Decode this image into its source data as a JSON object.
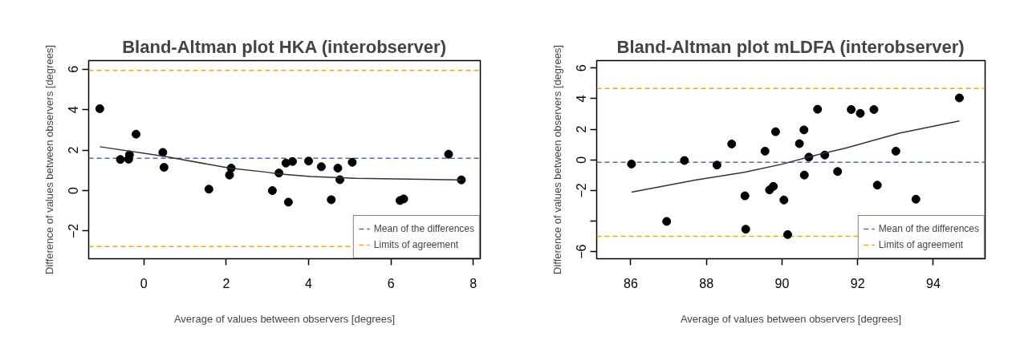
{
  "chart_data": [
    {
      "type": "scatter",
      "title": "Bland-Altman plot HKA (interobserver)",
      "xlabel": "Average of values between observers [degrees]",
      "ylabel": "Difference of values between observers [degrees]",
      "xlim": [
        -1.34,
        8.17
      ],
      "ylim": [
        -3.37,
        6.43
      ],
      "xticks": [
        0,
        2,
        4,
        6,
        8
      ],
      "yticks": [
        -2,
        0,
        2,
        4,
        6
      ],
      "grid": false,
      "legend": "bottom right",
      "series": [
        {
          "marker": "circle",
          "color": "#000000",
          "x": [
            -1.07,
            -0.57,
            -0.37,
            -0.35,
            -0.19,
            0.46,
            0.49,
            1.58,
            2.08,
            2.12,
            3.12,
            3.28,
            3.51,
            3.45,
            3.61,
            4.0,
            4.31,
            4.55,
            4.71,
            4.76,
            5.06,
            6.22,
            6.31,
            7.4,
            7.71
          ],
          "values": [
            4.05,
            1.54,
            1.55,
            1.77,
            2.79,
            1.89,
            1.15,
            0.07,
            0.77,
            1.11,
            0.0,
            0.87,
            -0.57,
            1.36,
            1.44,
            1.46,
            1.18,
            -0.45,
            1.11,
            0.54,
            1.4,
            -0.49,
            -0.41,
            1.8,
            0.53
          ]
        },
        {
          "type": "line",
          "color": "#333333",
          "x": [
            -1.07,
            0.46,
            2.08,
            2.94,
            3.28,
            4.05,
            5.15,
            6.45,
            7.71
          ],
          "values": [
            2.17,
            1.71,
            1.11,
            0.92,
            0.83,
            0.7,
            0.61,
            0.57,
            0.53
          ]
        }
      ],
      "ref_lines": [
        {
          "axis": "y",
          "value": 1.6,
          "label": "Mean of the differences",
          "color": "#4a6fb5",
          "line_style": "dashed"
        },
        {
          "axis": "y",
          "value": 5.94,
          "label": "Limits of agreement",
          "color": "#ffa500",
          "line_style": "dashed"
        },
        {
          "axis": "y",
          "value": -2.76,
          "color": "#ffa500",
          "line_style": "dashed"
        }
      ]
    },
    {
      "type": "scatter",
      "title": "Bland-Altman plot mLDFA (interobserver)",
      "xlabel": "Average of values between observers [degrees]",
      "ylabel": "Difference of values between observers [degrees]",
      "xlim": [
        85.1,
        95.37
      ],
      "ylim": [
        -6.46,
        6.49
      ],
      "xticks": [
        86,
        88,
        90,
        92,
        94
      ],
      "yticks": [
        -6,
        {
          "value": -4,
          "label": null
        },
        -2,
        0,
        2,
        4,
        6
      ],
      "grid": false,
      "legend": "bottom right",
      "series": [
        {
          "marker": "circle",
          "color": "#000000",
          "x": [
            86.02,
            86.95,
            87.42,
            88.28,
            88.67,
            89.02,
            89.04,
            89.55,
            89.67,
            89.77,
            89.83,
            90.05,
            90.15,
            90.46,
            90.58,
            90.59,
            90.71,
            90.94,
            91.13,
            91.47,
            91.83,
            92.07,
            92.43,
            92.52,
            93.01,
            93.54,
            94.69
          ],
          "values": [
            -0.27,
            -4.02,
            -0.04,
            -0.34,
            1.04,
            -2.35,
            -4.53,
            0.57,
            -1.96,
            -1.73,
            1.84,
            -2.62,
            -4.88,
            1.06,
            1.96,
            -0.99,
            0.18,
            3.31,
            0.32,
            -0.76,
            3.29,
            3.04,
            3.29,
            -1.65,
            0.57,
            -2.57,
            4.05
          ]
        },
        {
          "type": "line",
          "color": "#333333",
          "x": [
            86.02,
            87.73,
            89.0,
            90.0,
            90.7,
            91.69,
            93.1,
            94.69
          ],
          "values": [
            -2.11,
            -1.31,
            -0.81,
            -0.28,
            0.19,
            0.78,
            1.75,
            2.55
          ]
        }
      ],
      "ref_lines": [
        {
          "axis": "y",
          "value": -0.16,
          "label": "Mean of the differences",
          "color": "#4a6fb5",
          "line_style": "dashed"
        },
        {
          "axis": "y",
          "value": 4.67,
          "label": "Limits of agreement",
          "color": "#ffa500",
          "line_style": "dashed"
        },
        {
          "axis": "y",
          "value": -4.99,
          "color": "#ffa500",
          "line_style": "dashed"
        }
      ]
    }
  ]
}
